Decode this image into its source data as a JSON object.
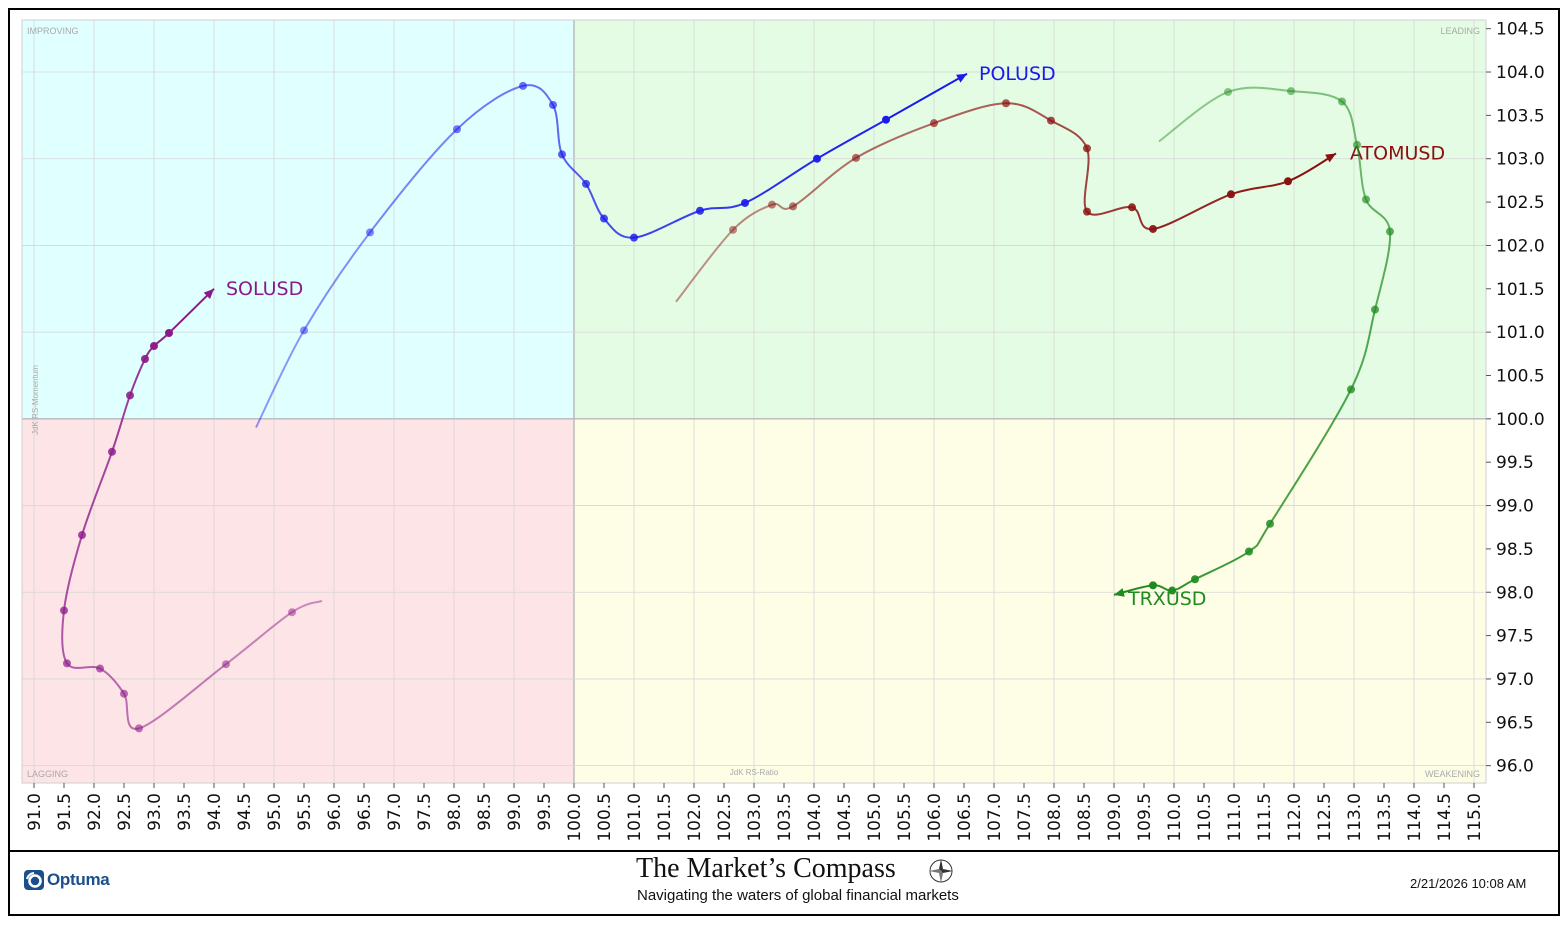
{
  "footer": {
    "brand": "Optuma",
    "title": "The Market’s Compass",
    "subtitle": "Navigating the waters of global financial markets",
    "timestamp": "2/21/2026 10:08 AM"
  },
  "chart_data": {
    "type": "scatter",
    "subtype": "relative-rotation-graph",
    "xlabel": "JdK RS-Ratio",
    "ylabel": "JdK RS-Momentum",
    "xlim": [
      90.8,
      115.2
    ],
    "ylim": [
      95.8,
      104.6
    ],
    "x_ticks": [
      "91.0",
      "91.5",
      "92.0",
      "92.5",
      "93.0",
      "93.5",
      "94.0",
      "94.5",
      "95.0",
      "95.5",
      "96.0",
      "96.5",
      "97.0",
      "97.5",
      "98.0",
      "98.5",
      "99.0",
      "99.5",
      "100.0",
      "100.5",
      "101.0",
      "101.5",
      "102.0",
      "102.5",
      "103.0",
      "103.5",
      "104.0",
      "104.5",
      "105.0",
      "105.5",
      "106.0",
      "106.5",
      "107.0",
      "107.5",
      "108.0",
      "108.5",
      "109.0",
      "109.5",
      "110.0",
      "110.5",
      "111.0",
      "111.5",
      "112.0",
      "112.5",
      "113.0",
      "113.5",
      "114.0",
      "114.5",
      "115.0"
    ],
    "y_ticks": [
      "96.0",
      "96.5",
      "97.0",
      "97.5",
      "98.0",
      "98.5",
      "99.0",
      "99.5",
      "100.0",
      "100.5",
      "101.0",
      "101.5",
      "102.0",
      "102.5",
      "103.0",
      "103.5",
      "104.0",
      "104.5"
    ],
    "grid": true,
    "quadrants": {
      "improving": {
        "label": "IMPROVING",
        "color": "#e0ffff"
      },
      "leading": {
        "label": "LEADING",
        "color": "#e3fce3"
      },
      "lagging": {
        "label": "LAGGING",
        "color": "#fde4e6"
      },
      "weakening": {
        "label": "WEAKENING",
        "color": "#fefee6"
      }
    },
    "series": [
      {
        "name": "SOLUSD",
        "color": "#8b1a89",
        "tail_start": [
          95.8,
          97.9
        ],
        "points": [
          [
            95.3,
            97.77
          ],
          [
            94.2,
            97.17
          ],
          [
            92.75,
            96.43
          ],
          [
            92.5,
            96.83
          ],
          [
            92.1,
            97.12
          ],
          [
            91.55,
            97.18
          ],
          [
            91.5,
            97.79
          ],
          [
            91.8,
            98.66
          ],
          [
            92.3,
            99.62
          ],
          [
            92.6,
            100.27
          ],
          [
            92.85,
            100.69
          ],
          [
            93.0,
            100.84
          ],
          [
            93.25,
            100.99
          ]
        ],
        "head": [
          94.0,
          101.5
        ]
      },
      {
        "name": "POLUSD",
        "color": "#1a1aee",
        "tail_start": [
          94.7,
          99.9
        ],
        "points": [
          [
            95.5,
            101.02
          ],
          [
            96.6,
            102.15
          ],
          [
            98.05,
            103.34
          ],
          [
            99.15,
            103.84
          ],
          [
            99.65,
            103.62
          ],
          [
            99.8,
            103.05
          ],
          [
            100.2,
            102.71
          ],
          [
            100.5,
            102.31
          ],
          [
            101.0,
            102.09
          ],
          [
            102.1,
            102.4
          ],
          [
            102.85,
            102.49
          ],
          [
            104.05,
            103.0
          ],
          [
            105.2,
            103.45
          ]
        ],
        "head": [
          106.55,
          103.98
        ]
      },
      {
        "name": "ATOMUSD",
        "color": "#8b1010",
        "tail_start": [
          101.7,
          101.35
        ],
        "points": [
          [
            102.65,
            102.18
          ],
          [
            103.3,
            102.47
          ],
          [
            103.65,
            102.45
          ],
          [
            104.7,
            103.01
          ],
          [
            106.0,
            103.41
          ],
          [
            107.2,
            103.64
          ],
          [
            107.95,
            103.44
          ],
          [
            108.55,
            103.12
          ],
          [
            108.55,
            102.39
          ],
          [
            109.3,
            102.44
          ],
          [
            109.65,
            102.19
          ],
          [
            110.95,
            102.59
          ],
          [
            111.9,
            102.74
          ]
        ],
        "head": [
          112.7,
          103.06
        ]
      },
      {
        "name": "TRXUSD",
        "color": "#1f8a1f",
        "tail_start": [
          109.75,
          103.2
        ],
        "points": [
          [
            110.9,
            103.77
          ],
          [
            111.95,
            103.78
          ],
          [
            112.8,
            103.66
          ],
          [
            113.05,
            103.16
          ],
          [
            113.2,
            102.53
          ],
          [
            113.6,
            102.16
          ],
          [
            113.35,
            101.26
          ],
          [
            112.95,
            100.34
          ],
          [
            111.6,
            98.79
          ],
          [
            111.25,
            98.47
          ],
          [
            110.35,
            98.15
          ],
          [
            109.97,
            98.02
          ],
          [
            109.65,
            98.08
          ]
        ],
        "head": [
          109.0,
          97.97
        ]
      }
    ]
  }
}
